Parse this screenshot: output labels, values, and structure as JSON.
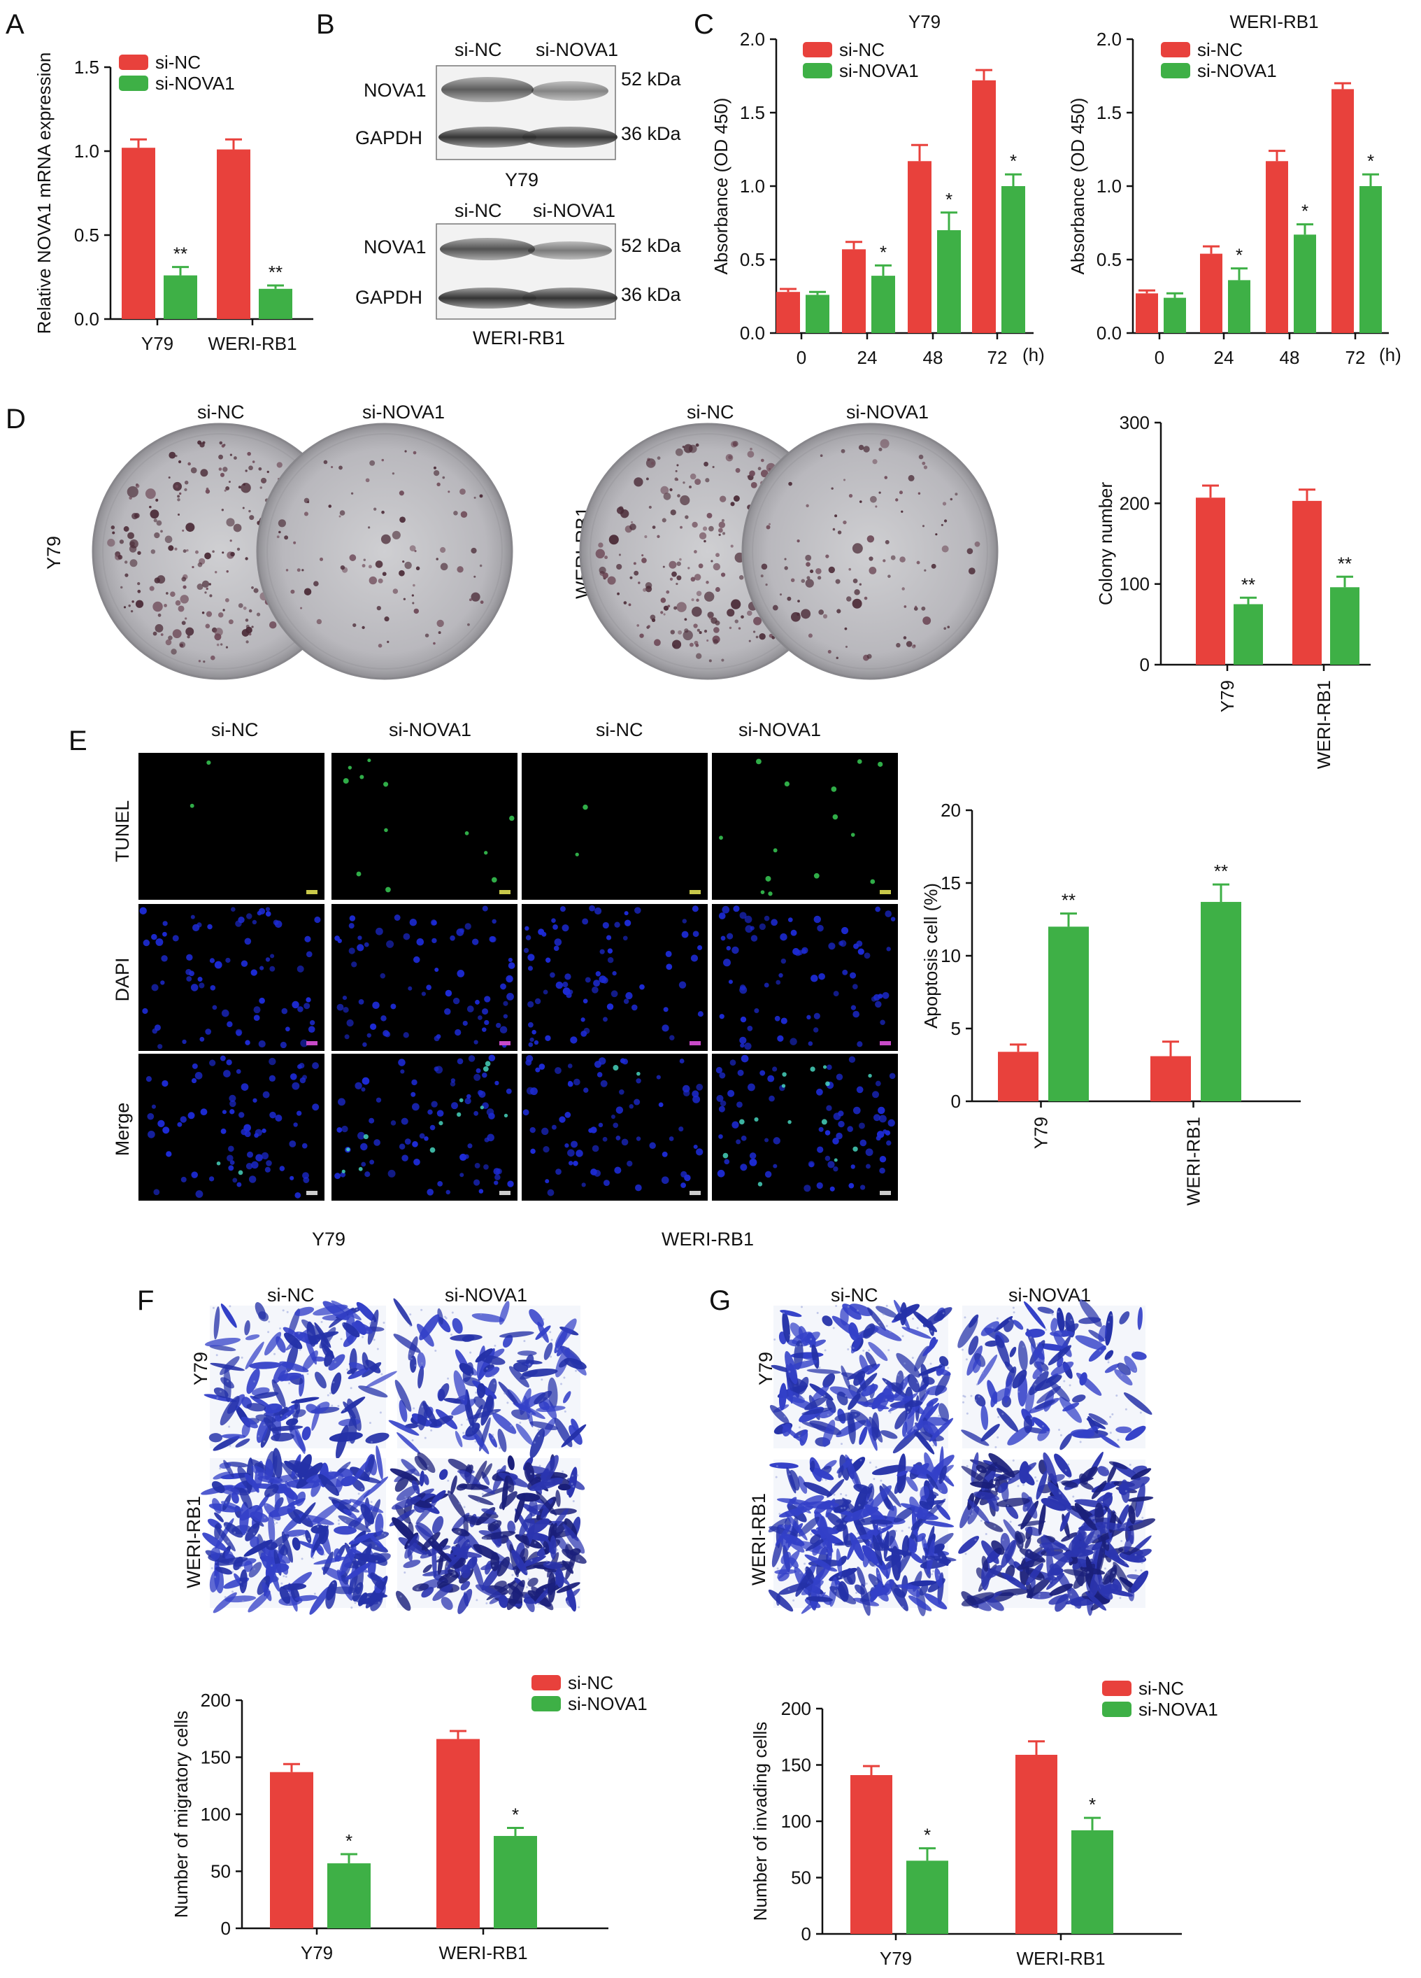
{
  "colors": {
    "si_nc": "#e8413c",
    "si_nova1": "#3eb046",
    "axis": "#111111"
  },
  "panel_letters": [
    "A",
    "B",
    "C",
    "D",
    "E",
    "F",
    "G"
  ],
  "legend": {
    "si_nc": "si-NC",
    "si_nova1": "si-NOVA1"
  },
  "chart_data": [
    {
      "id": "A",
      "type": "bar",
      "ylabel": "Relative NOVA1 mRNA expression",
      "ylim": [
        0,
        1.5
      ],
      "yticks": [
        "0.0",
        "0.5",
        "1.0",
        "1.5"
      ],
      "categories": [
        "Y79",
        "WERI-RB1"
      ],
      "series": [
        {
          "name": "si-NC",
          "values": [
            1.02,
            1.01
          ],
          "err": [
            0.05,
            0.06
          ]
        },
        {
          "name": "si-NOVA1",
          "values": [
            0.26,
            0.18
          ],
          "err": [
            0.05,
            0.02
          ]
        }
      ],
      "significance": [
        "**",
        "**"
      ],
      "legend": "top-left"
    },
    {
      "id": "C1",
      "type": "bar",
      "title": "Y79",
      "ylabel": "Absorbance (OD 450)",
      "ylim": [
        0,
        2.0
      ],
      "yticks": [
        "0.0",
        "0.5",
        "1.0",
        "1.5",
        "2.0"
      ],
      "categories": [
        "0",
        "24",
        "48",
        "72"
      ],
      "x_unit": "(h)",
      "series": [
        {
          "name": "si-NC",
          "values": [
            0.28,
            0.57,
            1.17,
            1.72
          ],
          "err": [
            0.02,
            0.05,
            0.11,
            0.07
          ]
        },
        {
          "name": "si-NOVA1",
          "values": [
            0.26,
            0.39,
            0.7,
            1.0
          ],
          "err": [
            0.02,
            0.07,
            0.12,
            0.08
          ]
        }
      ],
      "significance": [
        "",
        "*",
        "*",
        "*"
      ],
      "legend": "top-left"
    },
    {
      "id": "C2",
      "type": "bar",
      "title": "WERI-RB1",
      "ylabel": "Absorbance (OD 450)",
      "ylim": [
        0,
        2.0
      ],
      "yticks": [
        "0.0",
        "0.5",
        "1.0",
        "1.5",
        "2.0"
      ],
      "categories": [
        "0",
        "24",
        "48",
        "72"
      ],
      "x_unit": "(h)",
      "series": [
        {
          "name": "si-NC",
          "values": [
            0.27,
            0.54,
            1.17,
            1.66
          ],
          "err": [
            0.02,
            0.05,
            0.07,
            0.04
          ]
        },
        {
          "name": "si-NOVA1",
          "values": [
            0.24,
            0.36,
            0.67,
            1.0
          ],
          "err": [
            0.03,
            0.08,
            0.07,
            0.08
          ]
        }
      ],
      "significance": [
        "",
        "*",
        "*",
        "*"
      ],
      "legend": "top-left"
    },
    {
      "id": "D",
      "type": "bar",
      "ylabel": "Colony number",
      "ylim": [
        0,
        300
      ],
      "yticks": [
        "0",
        "100",
        "200",
        "300"
      ],
      "categories": [
        "Y79",
        "WERI-RB1"
      ],
      "series": [
        {
          "name": "si-NC",
          "values": [
            207,
            203
          ],
          "err": [
            15,
            14
          ]
        },
        {
          "name": "si-NOVA1",
          "values": [
            75,
            96
          ],
          "err": [
            8,
            13
          ]
        }
      ],
      "significance": [
        "**",
        "**"
      ]
    },
    {
      "id": "E",
      "type": "bar",
      "ylabel": "Apoptosis cell (%)",
      "ylim": [
        0,
        20
      ],
      "yticks": [
        "0",
        "5",
        "10",
        "15",
        "20"
      ],
      "categories": [
        "Y79",
        "WERI-RB1"
      ],
      "series": [
        {
          "name": "si-NC",
          "values": [
            3.4,
            3.1
          ],
          "err": [
            0.5,
            1.0
          ]
        },
        {
          "name": "si-NOVA1",
          "values": [
            12.0,
            13.7
          ],
          "err": [
            0.9,
            1.2
          ]
        }
      ],
      "significance": [
        "**",
        "**"
      ]
    },
    {
      "id": "F",
      "type": "bar",
      "ylabel": "Number of migratory cells",
      "ylim": [
        0,
        200
      ],
      "yticks": [
        "0",
        "50",
        "100",
        "150",
        "200"
      ],
      "categories": [
        "Y79",
        "WERI-RB1"
      ],
      "series": [
        {
          "name": "si-NC",
          "values": [
            137,
            166
          ],
          "err": [
            7,
            7
          ]
        },
        {
          "name": "si-NOVA1",
          "values": [
            57,
            81
          ],
          "err": [
            8,
            7
          ]
        }
      ],
      "significance": [
        "*",
        "*"
      ],
      "legend": "top-right"
    },
    {
      "id": "G",
      "type": "bar",
      "ylabel": "Number of invading cells",
      "ylim": [
        0,
        200
      ],
      "yticks": [
        "0",
        "50",
        "100",
        "150",
        "200"
      ],
      "categories": [
        "Y79",
        "WERI-RB1"
      ],
      "series": [
        {
          "name": "si-NC",
          "values": [
            141,
            159
          ],
          "err": [
            8,
            12
          ]
        },
        {
          "name": "si-NOVA1",
          "values": [
            65,
            92
          ],
          "err": [
            11,
            11
          ]
        }
      ],
      "significance": [
        "*",
        "*"
      ],
      "legend": "top-right"
    }
  ],
  "western_blot": {
    "columns": [
      "si-NC",
      "si-NOVA1"
    ],
    "blocks": [
      {
        "cell_line": "Y79",
        "rows": [
          {
            "protein": "NOVA1",
            "size": "52 kDa"
          },
          {
            "protein": "GAPDH",
            "size": "36 kDa"
          }
        ]
      },
      {
        "cell_line": "WERI-RB1",
        "rows": [
          {
            "protein": "NOVA1",
            "size": "52 kDa"
          },
          {
            "protein": "GAPDH",
            "size": "36 kDa"
          }
        ]
      }
    ]
  },
  "colony_plates": {
    "labels": [
      "si-NC",
      "si-NOVA1",
      "si-NC",
      "si-NOVA1"
    ],
    "row_labels": [
      "Y79",
      "WERI-RB1"
    ]
  },
  "tunel": {
    "columns": [
      "si-NC",
      "si-NOVA1",
      "si-NC",
      "si-NOVA1"
    ],
    "rows": [
      "TUNEL",
      "DAPI",
      "Merge"
    ],
    "cell_lines": [
      "Y79",
      "WERI-RB1"
    ]
  },
  "migration": {
    "columns": [
      "si-NC",
      "si-NOVA1"
    ],
    "rows": [
      "Y79",
      "WERI-RB1"
    ]
  },
  "invasion": {
    "columns": [
      "si-NC",
      "si-NOVA1"
    ],
    "rows": [
      "Y79",
      "WERI-RB1"
    ]
  }
}
